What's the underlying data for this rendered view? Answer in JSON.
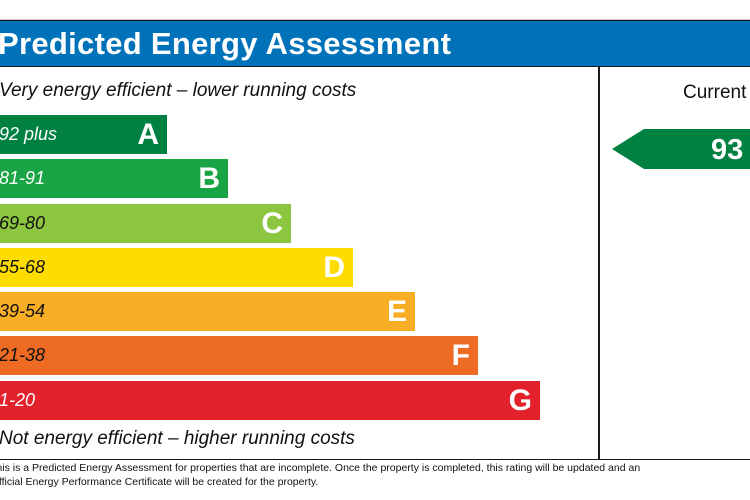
{
  "header": {
    "title": "Predicted Energy Assessment"
  },
  "captions": {
    "top": "Very energy efficient – lower running costs",
    "bottom": "Not energy efficient – higher running costs"
  },
  "bands": [
    {
      "range": "92 plus",
      "letter": "A",
      "color": "#008041"
    },
    {
      "range": "81-91",
      "letter": "B",
      "color": "#19a545"
    },
    {
      "range": "69-80",
      "letter": "C",
      "color": "#8cc540"
    },
    {
      "range": "55-68",
      "letter": "D",
      "color": "#ffdc00"
    },
    {
      "range": "39-54",
      "letter": "E",
      "color": "#f7ad24"
    },
    {
      "range": "21-38",
      "letter": "F",
      "color": "#ee6b24"
    },
    {
      "range": "1-20",
      "letter": "G",
      "color": "#e2212a"
    }
  ],
  "current": {
    "label": "Current",
    "rating": "93",
    "color": "#008041"
  },
  "footnote": {
    "line1": "This is a Predicted Energy Assessment for properties that are incomplete. Once the property is completed, this rating will be updated and an",
    "line2": "official Energy Performance Certificate will be created for the property."
  }
}
